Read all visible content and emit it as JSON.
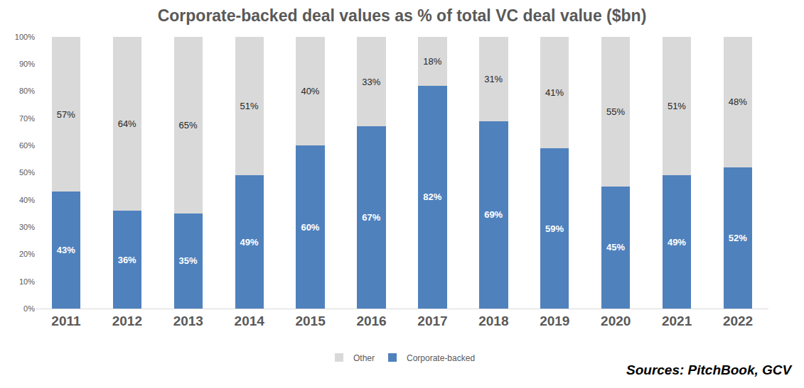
{
  "chart_data": {
    "type": "bar",
    "title": "Corporate-backed deal values as % of total VC deal value ($bn)",
    "categories": [
      "2011",
      "2012",
      "2013",
      "2014",
      "2015",
      "2016",
      "2017",
      "2018",
      "2019",
      "2020",
      "2021",
      "2022"
    ],
    "series": [
      {
        "name": "Corporate-backed",
        "color": "#4f81bd",
        "values": [
          43,
          36,
          35,
          49,
          60,
          67,
          82,
          69,
          59,
          45,
          49,
          52
        ],
        "value_labels": [
          "43%",
          "36%",
          "35%",
          "49%",
          "60%",
          "67%",
          "82%",
          "69%",
          "59%",
          "45%",
          "49%",
          "52%"
        ]
      },
      {
        "name": "Other",
        "color": "#d9d9d9",
        "values": [
          57,
          64,
          65,
          51,
          40,
          33,
          18,
          31,
          41,
          55,
          51,
          48
        ],
        "value_labels": [
          "57%",
          "64%",
          "65%",
          "51%",
          "40%",
          "33%",
          "18%",
          "31%",
          "41%",
          "55%",
          "51%",
          "48%"
        ]
      }
    ],
    "ylim": [
      0,
      100
    ],
    "yticks": [
      {
        "value": 0,
        "label": "0%"
      },
      {
        "value": 10,
        "label": "10%"
      },
      {
        "value": 20,
        "label": "20%"
      },
      {
        "value": 30,
        "label": "30%"
      },
      {
        "value": 40,
        "label": "40%"
      },
      {
        "value": 50,
        "label": "50%"
      },
      {
        "value": 60,
        "label": "60%"
      },
      {
        "value": 70,
        "label": "70%"
      },
      {
        "value": 80,
        "label": "80%"
      },
      {
        "value": 90,
        "label": "90%"
      },
      {
        "value": 100,
        "label": "100%"
      }
    ],
    "stacked": true,
    "data_labels": true,
    "grid": false,
    "legend": "bottom",
    "annotations": [
      {
        "text": "Sources: PitchBook, GCV"
      }
    ]
  }
}
